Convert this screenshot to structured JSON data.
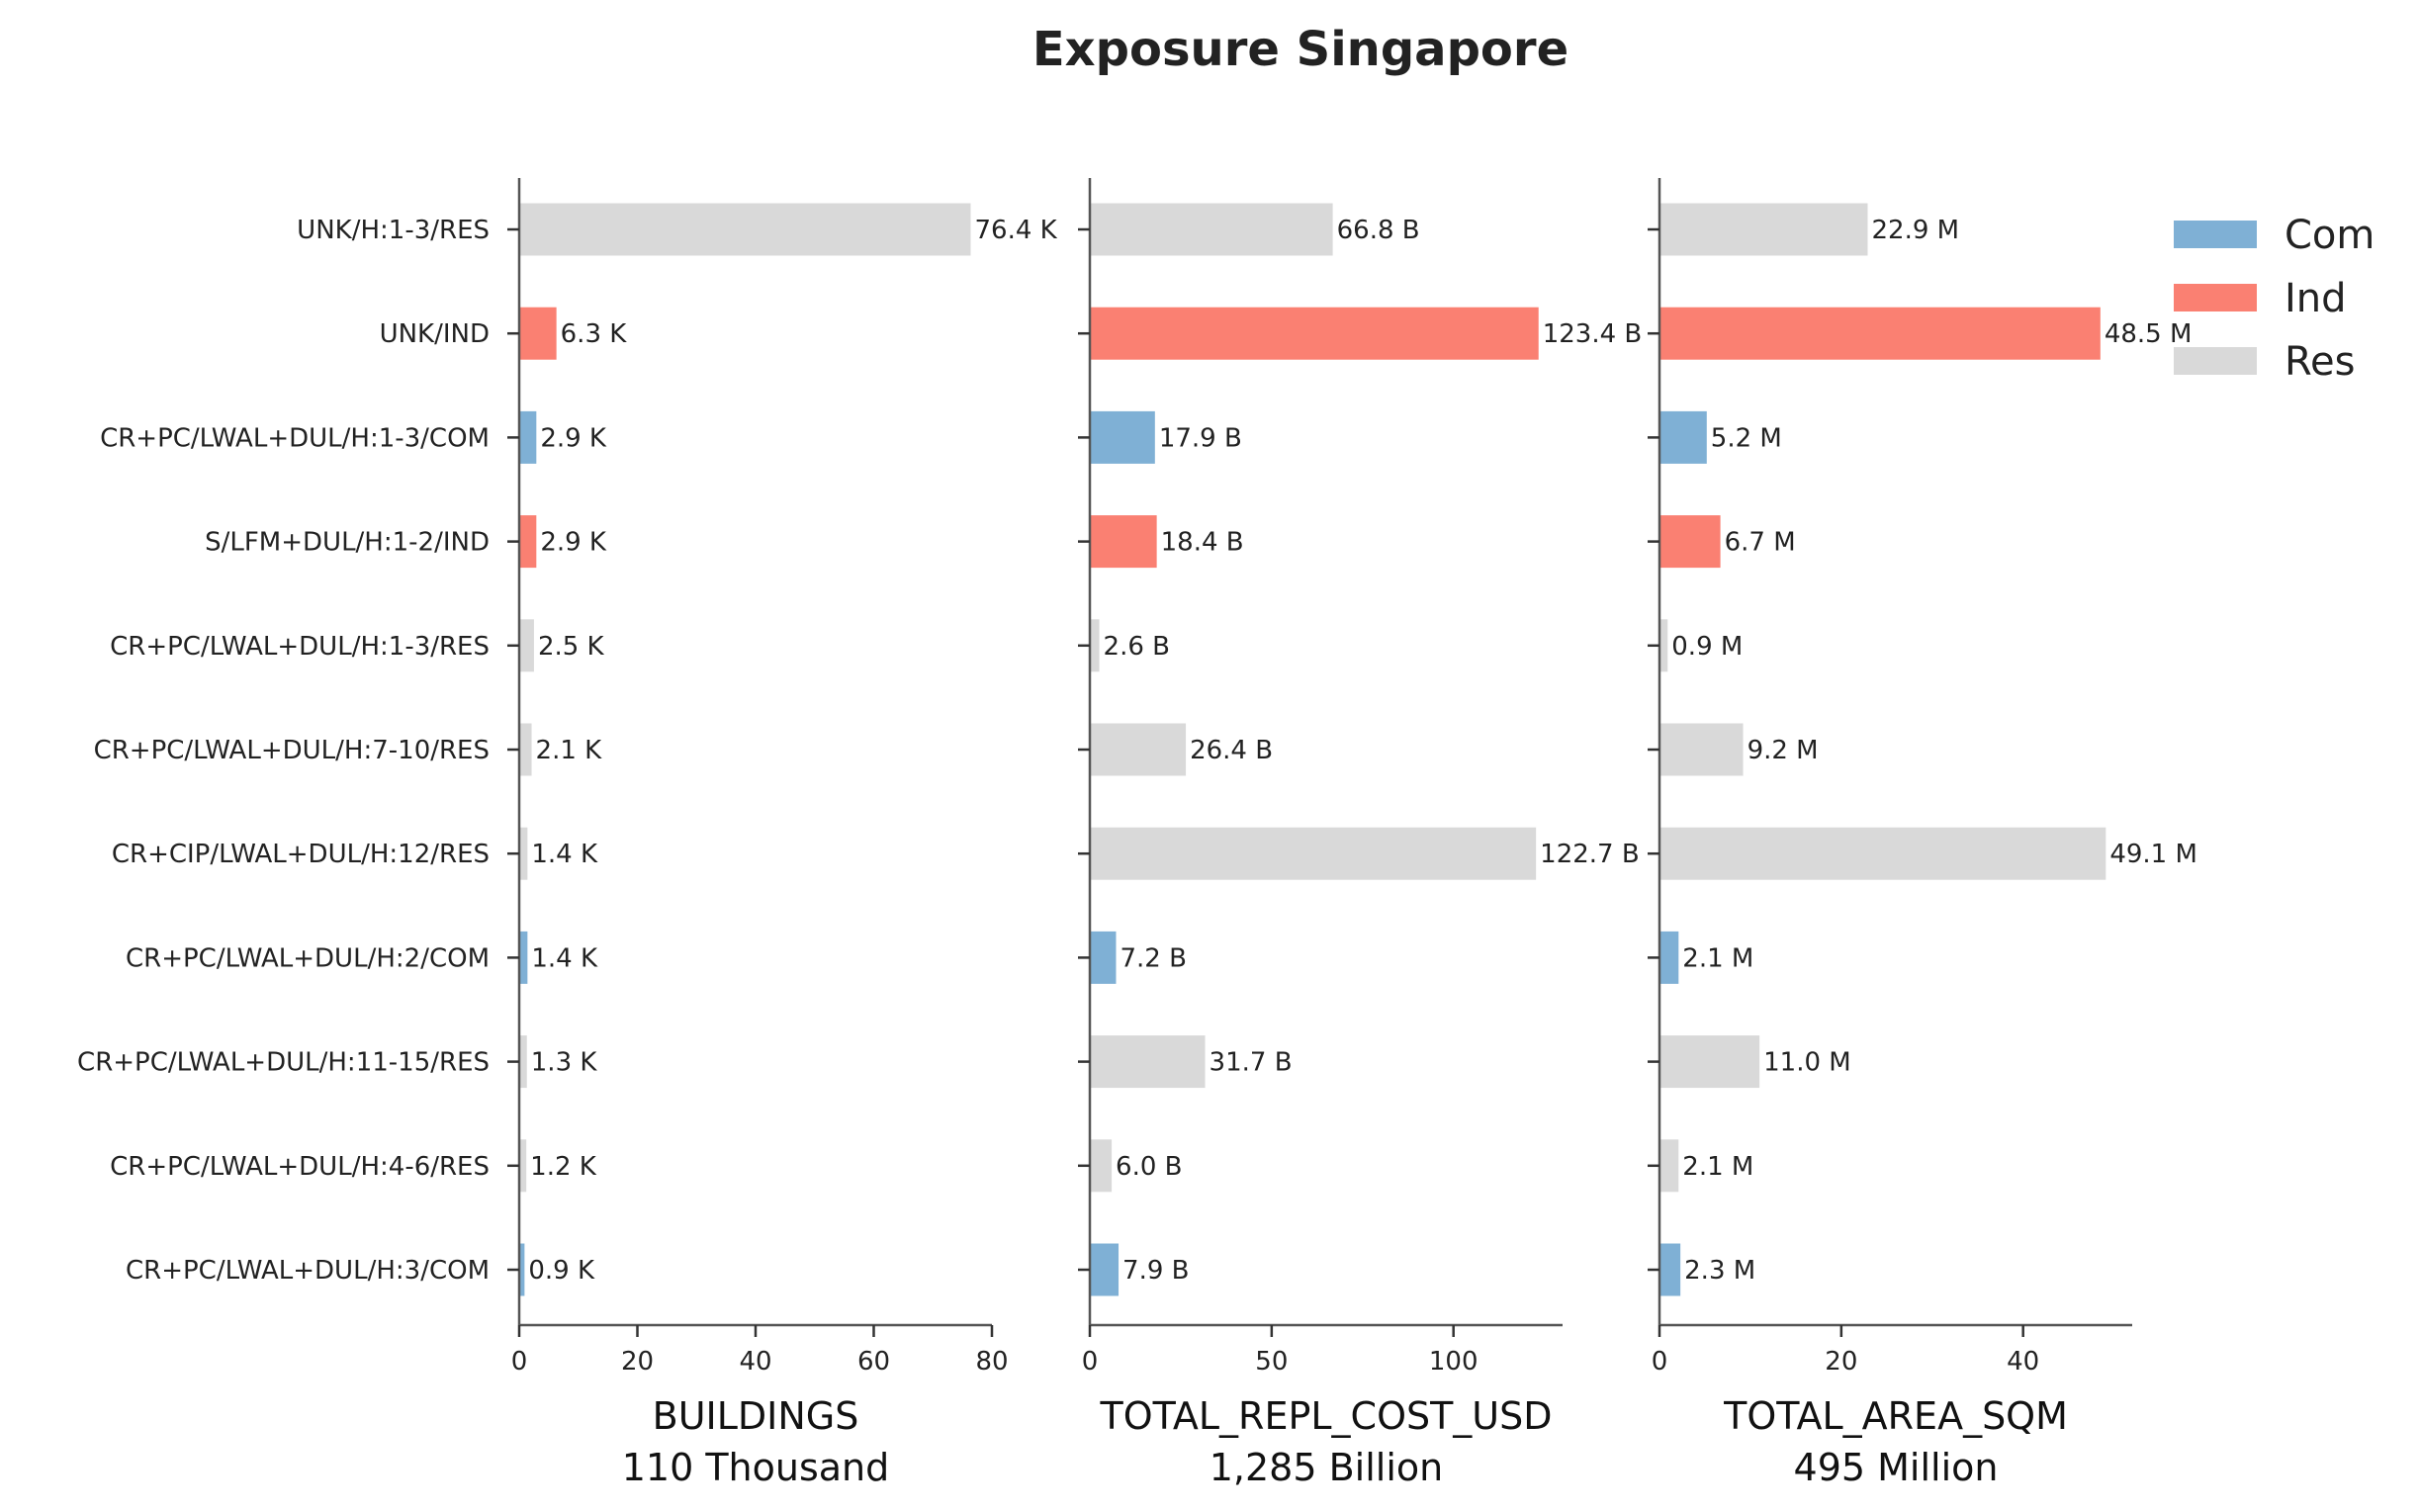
{
  "chart_data": {
    "type": "bar",
    "orientation": "horizontal",
    "title": "Exposure Singapore",
    "categories": [
      "UNK/H:1-3/RES",
      "UNK/IND",
      "CR+PC/LWAL+DUL/H:1-3/COM",
      "S/LFM+DUL/H:1-2/IND",
      "CR+PC/LWAL+DUL/H:1-3/RES",
      "CR+PC/LWAL+DUL/H:7-10/RES",
      "CR+CIP/LWAL+DUL/H:12/RES",
      "CR+PC/LWAL+DUL/H:2/COM",
      "CR+PC/LWAL+DUL/H:11-15/RES",
      "CR+PC/LWAL+DUL/H:4-6/RES",
      "CR+PC/LWAL+DUL/H:3/COM"
    ],
    "category_group": [
      "Res",
      "Ind",
      "Com",
      "Ind",
      "Res",
      "Res",
      "Res",
      "Com",
      "Res",
      "Res",
      "Com"
    ],
    "groups": [
      {
        "name": "Com",
        "color": "#7fb0d5"
      },
      {
        "name": "Ind",
        "color": "#fa8072"
      },
      {
        "name": "Res",
        "color": "#d9d9d9"
      }
    ],
    "legend": "top-right",
    "grid": false,
    "panels": [
      {
        "xlabel": "BUILDINGS",
        "total": "110 Thousand",
        "xlim": [
          0,
          80
        ],
        "xticks": [
          0,
          20,
          40,
          60,
          80
        ],
        "values": [
          76.4,
          6.3,
          2.9,
          2.9,
          2.5,
          2.1,
          1.4,
          1.4,
          1.3,
          1.2,
          0.9
        ],
        "labels": [
          "76.4 K",
          "6.3 K",
          "2.9 K",
          "2.9 K",
          "2.5 K",
          "2.1 K",
          "1.4 K",
          "1.4 K",
          "1.3 K",
          "1.2 K",
          "0.9 K"
        ]
      },
      {
        "xlabel": "TOTAL_REPL_COST_USD",
        "total": "1,285 Billion",
        "xlim": [
          0,
          130
        ],
        "xticks": [
          0,
          50,
          100
        ],
        "values": [
          66.8,
          123.4,
          17.9,
          18.4,
          2.6,
          26.4,
          122.7,
          7.2,
          31.7,
          6.0,
          7.9
        ],
        "labels": [
          "66.8 B",
          "123.4 B",
          "17.9 B",
          "18.4 B",
          "2.6 B",
          "26.4 B",
          "122.7 B",
          "7.2 B",
          "31.7 B",
          "6.0 B",
          "7.9 B"
        ]
      },
      {
        "xlabel": "TOTAL_AREA_SQM",
        "total": "495 Million",
        "xlim": [
          0,
          52
        ],
        "xticks": [
          0,
          20,
          40
        ],
        "values": [
          22.9,
          48.5,
          5.2,
          6.7,
          0.9,
          9.2,
          49.1,
          2.1,
          11.0,
          2.1,
          2.3
        ],
        "labels": [
          "22.9 M",
          "48.5 M",
          "5.2 M",
          "6.7 M",
          "0.9 M",
          "9.2 M",
          "49.1 M",
          "2.1 M",
          "11.0 M",
          "2.1 M",
          "2.3 M"
        ]
      }
    ]
  }
}
